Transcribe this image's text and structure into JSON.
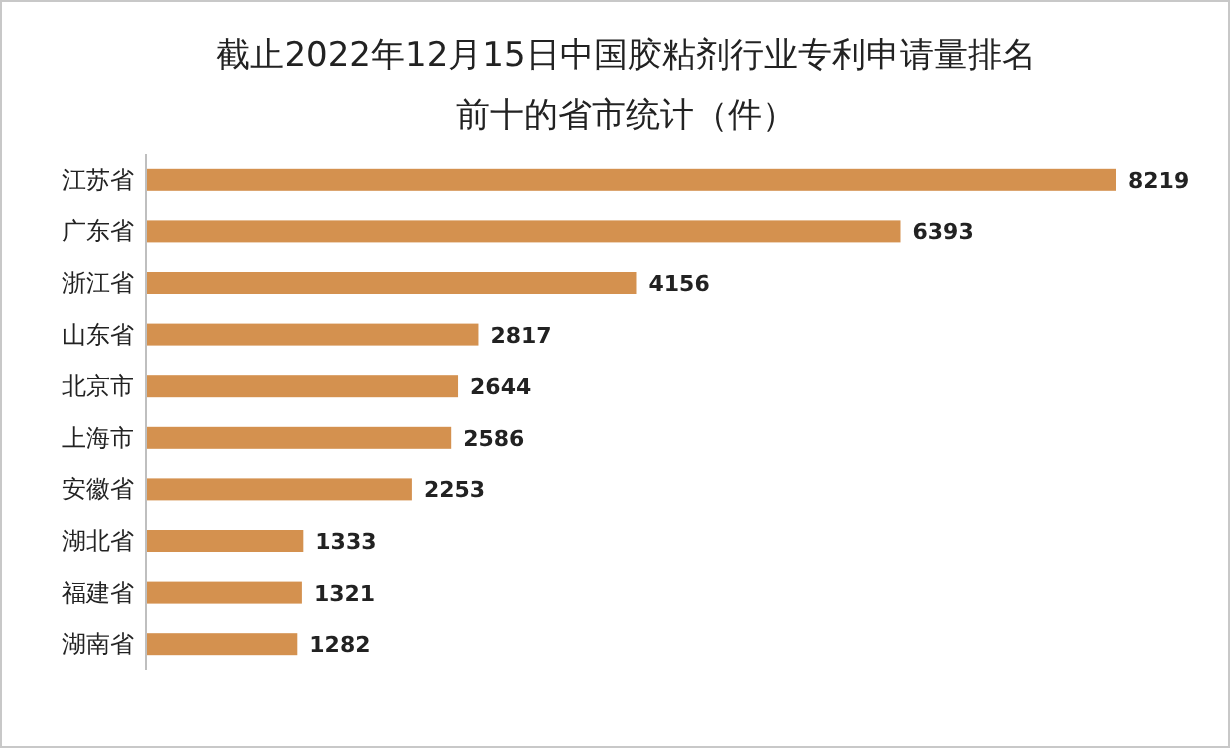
{
  "chart_data": {
    "type": "bar",
    "orientation": "horizontal",
    "title": "截止2022年12月15日中国胶粘剂行业专利申请量排名前十的省市统计（件）",
    "categories": [
      "江苏省",
      "广东省",
      "浙江省",
      "山东省",
      "北京市",
      "上海市",
      "安徽省",
      "湖北省",
      "福建省",
      "湖南省"
    ],
    "values": [
      8219,
      6393,
      4156,
      2817,
      2644,
      2586,
      2253,
      1333,
      1321,
      1282
    ],
    "color": "#d4914f",
    "data_labels": true
  }
}
